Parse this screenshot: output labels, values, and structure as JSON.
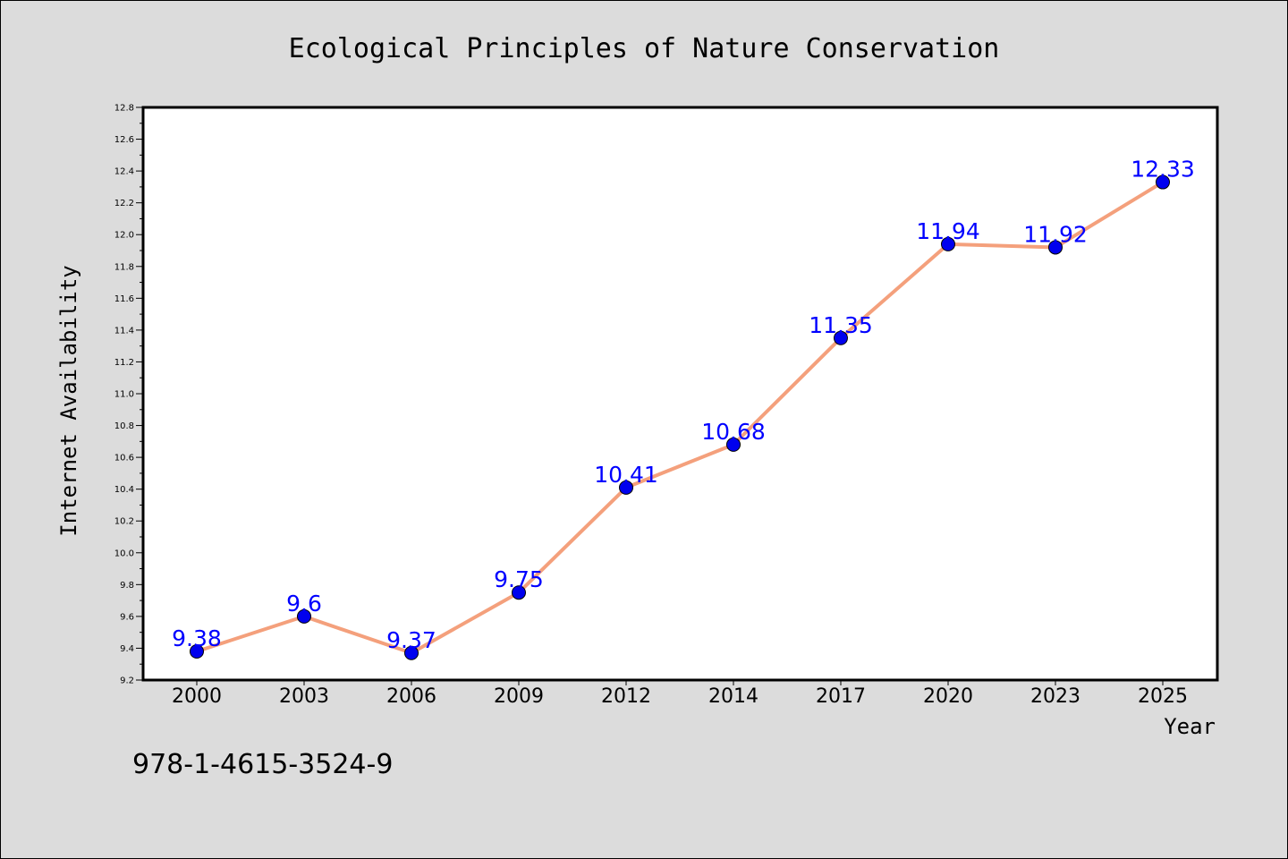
{
  "chart_data": {
    "type": "line",
    "title": "Ecological Principles of Nature Conservation",
    "xlabel": "Year",
    "ylabel": "Internet Availability",
    "categories": [
      "2000",
      "2003",
      "2006",
      "2009",
      "2012",
      "2014",
      "2017",
      "2020",
      "2023",
      "2025"
    ],
    "series": [
      {
        "values": [
          9.38,
          9.6,
          9.37,
          9.75,
          10.41,
          10.68,
          11.35,
          11.94,
          11.92,
          12.33
        ],
        "labels": [
          "9.38",
          "9.6",
          "9.37",
          "9.75",
          "10.41",
          "10.68",
          "11.35",
          "11.94",
          "11.92",
          "12.33"
        ],
        "line_color": "#f4a07c",
        "marker_color": "#0000ee",
        "label_color": "#0000ff"
      }
    ],
    "ylim": [
      9.2,
      12.8
    ],
    "yticks": [
      "9.2",
      "9.4",
      "9.6",
      "9.8",
      "10.0",
      "10.2",
      "10.4",
      "10.6",
      "10.8",
      "11.0",
      "11.2",
      "11.4",
      "11.6",
      "11.8",
      "12.0",
      "12.2",
      "12.4",
      "12.6",
      "12.8"
    ],
    "grid": false,
    "legend": "none"
  },
  "footer": {
    "isbn": "978-1-4615-3524-9"
  }
}
